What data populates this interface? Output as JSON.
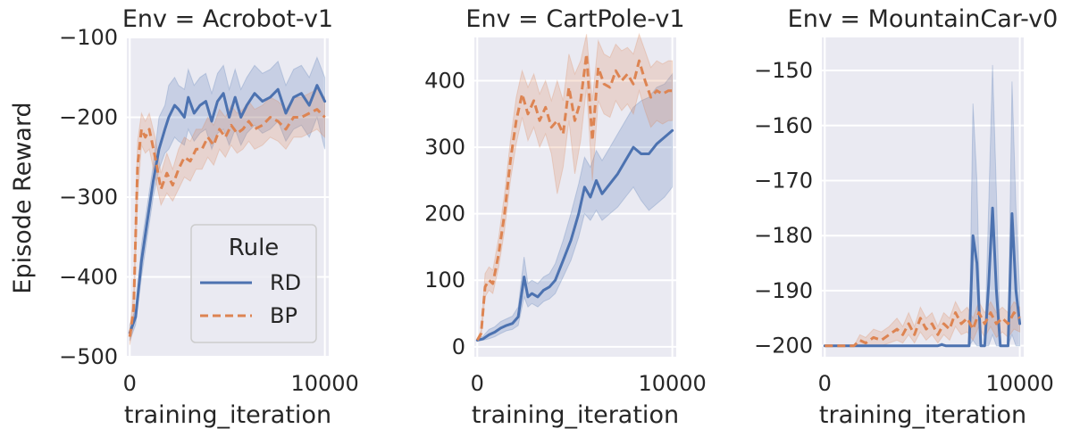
{
  "figure": {
    "ylabel": "Episode Reward",
    "legend": {
      "title": "Rule",
      "placement": "lower-right (first panel)"
    }
  },
  "colors": {
    "background": "#eaeaf2",
    "grid": "#ffffff",
    "RD": "#4c72b0",
    "BP": "#dd8452"
  },
  "chart_data": [
    {
      "type": "line",
      "title": "Env = Acrobot-v1",
      "xlabel": "training_iteration",
      "ylabel": "Episode Reward",
      "xlim": [
        -150,
        10200
      ],
      "ylim": [
        -500,
        -100
      ],
      "xticks": [
        0,
        10000
      ],
      "xtick_labels": [
        "0",
        "10000"
      ],
      "yticks": [
        -500,
        -400,
        -300,
        -200,
        -100
      ],
      "ytick_labels": [
        "−500",
        "−400",
        "−300",
        "−200",
        "−100"
      ],
      "grid": true,
      "legend": {
        "title": "Rule",
        "entries": [
          "RD",
          "BP"
        ],
        "placement": "lower-right"
      },
      "series": [
        {
          "name": "RD",
          "style": "solid",
          "x": [
            0,
            300,
            600,
            900,
            1200,
            1500,
            1800,
            2000,
            2300,
            2500,
            2800,
            3000,
            3300,
            3600,
            3900,
            4200,
            4500,
            4800,
            5100,
            5400,
            5700,
            6000,
            6400,
            6800,
            7200,
            7600,
            8000,
            8400,
            8800,
            9200,
            9600,
            10000
          ],
          "y": [
            -470,
            -450,
            -380,
            -330,
            -280,
            -240,
            -215,
            -200,
            -185,
            -190,
            -200,
            -175,
            -195,
            -185,
            -180,
            -205,
            -180,
            -170,
            -200,
            -175,
            -200,
            -185,
            -170,
            -180,
            -175,
            -165,
            -195,
            -175,
            -170,
            -185,
            -160,
            -180
          ],
          "y_lower": [
            -480,
            -460,
            -400,
            -350,
            -300,
            -265,
            -245,
            -240,
            -225,
            -230,
            -235,
            -215,
            -230,
            -220,
            -215,
            -240,
            -220,
            -215,
            -235,
            -215,
            -235,
            -220,
            -210,
            -220,
            -215,
            -205,
            -230,
            -215,
            -210,
            -225,
            -200,
            -240
          ],
          "y_upper": [
            -460,
            -440,
            -360,
            -310,
            -260,
            -200,
            -185,
            -160,
            -150,
            -160,
            -165,
            -140,
            -160,
            -150,
            -145,
            -170,
            -145,
            -135,
            -165,
            -140,
            -165,
            -150,
            -135,
            -145,
            -140,
            -130,
            -160,
            -140,
            -135,
            -150,
            -125,
            -150
          ]
        },
        {
          "name": "BP",
          "style": "dashed",
          "x": [
            0,
            200,
            400,
            600,
            800,
            1000,
            1300,
            1600,
            1900,
            2200,
            2500,
            2800,
            3100,
            3400,
            3700,
            4000,
            4300,
            4600,
            4900,
            5200,
            5500,
            5800,
            6100,
            6400,
            6800,
            7200,
            7600,
            8000,
            8400,
            8800,
            9200,
            9600,
            10000
          ],
          "y": [
            -475,
            -440,
            -260,
            -215,
            -225,
            -215,
            -250,
            -290,
            -270,
            -285,
            -265,
            -250,
            -255,
            -240,
            -240,
            -225,
            -235,
            -215,
            -225,
            -210,
            -220,
            -215,
            -205,
            -215,
            -210,
            -200,
            -205,
            -215,
            -200,
            -200,
            -195,
            -190,
            -200
          ],
          "y_lower": [
            -485,
            -460,
            -300,
            -235,
            -245,
            -240,
            -275,
            -310,
            -295,
            -305,
            -290,
            -275,
            -280,
            -265,
            -265,
            -250,
            -260,
            -240,
            -250,
            -235,
            -245,
            -240,
            -230,
            -240,
            -235,
            -225,
            -230,
            -240,
            -225,
            -225,
            -220,
            -215,
            -225
          ],
          "y_upper": [
            -465,
            -420,
            -230,
            -195,
            -205,
            -195,
            -225,
            -270,
            -245,
            -265,
            -240,
            -225,
            -230,
            -215,
            -215,
            -200,
            -210,
            -190,
            -200,
            -185,
            -195,
            -190,
            -180,
            -190,
            -185,
            -175,
            -180,
            -190,
            -175,
            -175,
            -170,
            -165,
            -175
          ]
        }
      ]
    },
    {
      "type": "line",
      "title": "Env = CartPole-v1",
      "xlabel": "training_iteration",
      "ylabel": "",
      "xlim": [
        -150,
        10200
      ],
      "ylim": [
        -15,
        465
      ],
      "xticks": [
        0,
        10000
      ],
      "xtick_labels": [
        "0",
        "10000"
      ],
      "yticks": [
        0,
        100,
        200,
        300,
        400
      ],
      "ytick_labels": [
        "0",
        "100",
        "200",
        "300",
        "400"
      ],
      "grid": true,
      "series": [
        {
          "name": "RD",
          "style": "solid",
          "x": [
            0,
            300,
            600,
            900,
            1200,
            1500,
            1800,
            2100,
            2400,
            2600,
            2800,
            3100,
            3400,
            3700,
            4000,
            4400,
            4800,
            5200,
            5500,
            5800,
            6100,
            6400,
            6800,
            7200,
            7600,
            8000,
            8400,
            8800,
            9200,
            9600,
            10000
          ],
          "y": [
            10,
            12,
            18,
            22,
            28,
            32,
            35,
            45,
            105,
            75,
            80,
            75,
            85,
            90,
            100,
            130,
            160,
            200,
            240,
            225,
            250,
            230,
            245,
            260,
            280,
            300,
            290,
            290,
            305,
            315,
            325
          ],
          "y_lower": [
            8,
            10,
            12,
            15,
            20,
            24,
            26,
            32,
            75,
            60,
            65,
            60,
            68,
            72,
            80,
            105,
            130,
            165,
            200,
            190,
            205,
            190,
            200,
            210,
            225,
            240,
            220,
            205,
            215,
            225,
            240
          ],
          "y_upper": [
            12,
            16,
            26,
            30,
            38,
            42,
            46,
            60,
            135,
            95,
            100,
            95,
            105,
            110,
            125,
            160,
            200,
            245,
            285,
            270,
            295,
            280,
            300,
            320,
            340,
            360,
            370,
            375,
            390,
            395,
            410
          ]
        },
        {
          "name": "BP",
          "style": "dashed",
          "x": [
            0,
            200,
            400,
            600,
            800,
            1100,
            1400,
            1700,
            2000,
            2300,
            2600,
            2900,
            3200,
            3500,
            3800,
            4100,
            4400,
            4700,
            5000,
            5300,
            5600,
            5900,
            6200,
            6500,
            6800,
            7100,
            7400,
            7700,
            8000,
            8300,
            8600,
            8900,
            9200,
            9500,
            9800,
            10000
          ],
          "y": [
            10,
            20,
            90,
            100,
            95,
            140,
            200,
            280,
            340,
            380,
            350,
            370,
            340,
            360,
            330,
            340,
            320,
            390,
            340,
            370,
            440,
            310,
            420,
            395,
            390,
            415,
            400,
            410,
            395,
            430,
            400,
            375,
            385,
            380,
            385,
            385
          ],
          "y_lower": [
            8,
            15,
            75,
            85,
            80,
            120,
            175,
            250,
            305,
            345,
            310,
            330,
            300,
            320,
            290,
            230,
            270,
            340,
            260,
            310,
            390,
            250,
            370,
            350,
            345,
            370,
            355,
            365,
            350,
            385,
            355,
            330,
            340,
            335,
            340,
            340
          ],
          "y_upper": [
            12,
            25,
            110,
            120,
            115,
            165,
            230,
            310,
            375,
            415,
            390,
            410,
            380,
            400,
            370,
            400,
            370,
            440,
            410,
            430,
            470,
            370,
            460,
            440,
            435,
            455,
            445,
            450,
            440,
            470,
            445,
            420,
            430,
            425,
            430,
            430
          ]
        }
      ]
    },
    {
      "type": "line",
      "title": "Env = MountainCar-v0",
      "xlabel": "training_iteration",
      "ylabel": "",
      "xlim": [
        -150,
        10200
      ],
      "ylim": [
        -202,
        -144
      ],
      "xticks": [
        0,
        10000
      ],
      "xtick_labels": [
        "0",
        "10000"
      ],
      "yticks": [
        -200,
        -190,
        -180,
        -170,
        -160,
        -150
      ],
      "ytick_labels": [
        "−200",
        "−190",
        "−180",
        "−170",
        "−160",
        "−150"
      ],
      "grid": true,
      "series": [
        {
          "name": "RD",
          "style": "solid",
          "x": [
            0,
            1000,
            2000,
            3000,
            4000,
            5000,
            5800,
            6000,
            6200,
            7000,
            7400,
            7600,
            7800,
            8000,
            8200,
            8400,
            8600,
            8800,
            9000,
            9200,
            9400,
            9600,
            9800,
            10000
          ],
          "y": [
            -200,
            -200,
            -200,
            -200,
            -200,
            -200,
            -200,
            -199.8,
            -200,
            -200,
            -200,
            -180,
            -185,
            -200,
            -200,
            -189,
            -175,
            -190,
            -200,
            -200,
            -200,
            -176,
            -190,
            -196
          ],
          "y_lower": [
            -200,
            -200,
            -200,
            -200,
            -200,
            -200,
            -200,
            -200,
            -200,
            -200,
            -200,
            -199,
            -200,
            -200,
            -200,
            -200,
            -198,
            -200,
            -200,
            -200,
            -200,
            -198,
            -200,
            -200
          ],
          "y_upper": [
            -200,
            -200,
            -200,
            -200,
            -200,
            -200,
            -200,
            -199.5,
            -200,
            -200,
            -200,
            -156,
            -170,
            -200,
            -200,
            -175,
            -149,
            -172,
            -200,
            -200,
            -200,
            -152,
            -175,
            -190
          ]
        },
        {
          "name": "BP",
          "style": "dashed",
          "x": [
            0,
            500,
            1000,
            1500,
            1800,
            2100,
            2500,
            2900,
            3300,
            3700,
            4000,
            4300,
            4600,
            4900,
            5200,
            5500,
            5800,
            6100,
            6400,
            6700,
            7000,
            7300,
            7600,
            7900,
            8200,
            8500,
            8800,
            9100,
            9400,
            9700,
            10000
          ],
          "y": [
            -200,
            -200,
            -200,
            -200,
            -199,
            -199.5,
            -198.5,
            -199,
            -198,
            -197,
            -198,
            -196,
            -198,
            -195,
            -197,
            -196,
            -198,
            -196,
            -197,
            -194,
            -196,
            -195,
            -197,
            -194,
            -196,
            -194,
            -196,
            -195,
            -196,
            -194,
            -195
          ],
          "y_lower": [
            -200,
            -200,
            -200,
            -200,
            -200,
            -200,
            -200,
            -200,
            -199.5,
            -199,
            -199.5,
            -198,
            -199.5,
            -197.5,
            -199,
            -198,
            -199.5,
            -198,
            -199,
            -196.5,
            -198,
            -197.5,
            -199,
            -196.5,
            -198.5,
            -196.5,
            -198.5,
            -197.5,
            -198.5,
            -197,
            -197.5
          ],
          "y_upper": [
            -200,
            -200,
            -200,
            -200,
            -198,
            -198.5,
            -197,
            -197.5,
            -196.5,
            -195,
            -196.5,
            -194,
            -196.5,
            -193,
            -195,
            -194,
            -196.5,
            -194,
            -195,
            -192,
            -194,
            -193,
            -195,
            -192,
            -194,
            -192,
            -194,
            -193,
            -194,
            -192,
            -193
          ]
        }
      ]
    }
  ]
}
